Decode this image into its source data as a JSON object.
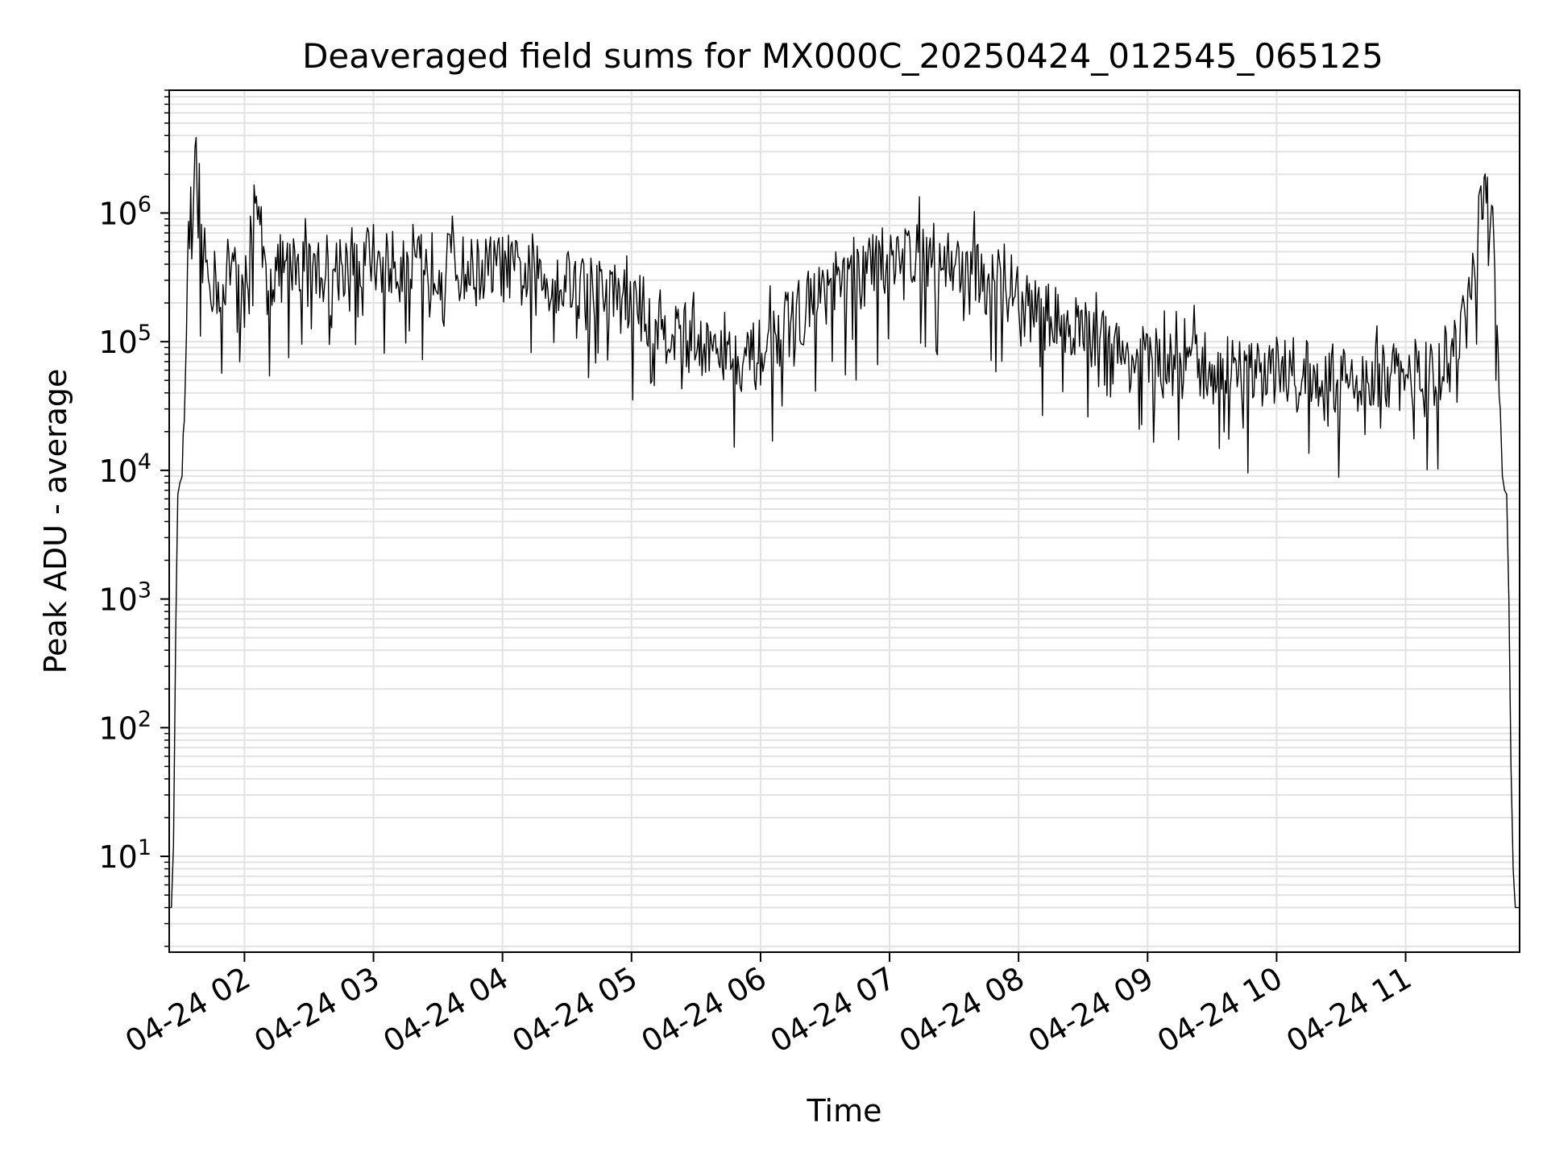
{
  "chart_data": {
    "type": "line",
    "title": "Deaveraged field sums for MX000C_20250424_012545_065125",
    "xlabel": "Time",
    "ylabel": "Peak ADU - average",
    "yscale": "log",
    "grid": true,
    "x_ticks": [
      "04-24 02",
      "04-24 03",
      "04-24 04",
      "04-24 05",
      "04-24 06",
      "04-24 07",
      "04-24 08",
      "04-24 09",
      "04-24 10",
      "04-24 11"
    ],
    "y_ticks": [
      {
        "base": "10",
        "exp": "1"
      },
      {
        "base": "10",
        "exp": "2"
      },
      {
        "base": "10",
        "exp": "3"
      },
      {
        "base": "10",
        "exp": "4"
      },
      {
        "base": "10",
        "exp": "5"
      },
      {
        "base": "10",
        "exp": "6"
      }
    ],
    "ylim": [
      1.8,
      9000000
    ],
    "xlim": [
      "2025-04-24 01:25",
      "2025-04-24 11:53"
    ],
    "series_color": "#000000",
    "series": [
      {
        "x": [
          "2025-04-24 01:25",
          "2025-04-24 01:26",
          "2025-04-24 01:27",
          "2025-04-24 01:28",
          "2025-04-24 01:29",
          "2025-04-24 01:30",
          "2025-04-24 01:31",
          "2025-04-24 01:32",
          "2025-04-24 01:33",
          "2025-04-24 01:34",
          "2025-04-24 01:35",
          "2025-04-24 01:36",
          "2025-04-24 01:37",
          "2025-04-24 01:38",
          "2025-04-24 01:39",
          "2025-04-24 01:40",
          "2025-04-24 01:42",
          "2025-04-24 01:45",
          "2025-04-24 01:50",
          "2025-04-24 01:55",
          "2025-04-24 02:00",
          "2025-04-24 02:05",
          "2025-04-24 02:10",
          "2025-04-24 02:20",
          "2025-04-24 02:30",
          "2025-04-24 02:45",
          "2025-04-24 03:00",
          "2025-04-24 03:15",
          "2025-04-24 03:30",
          "2025-04-24 03:45",
          "2025-04-24 04:00",
          "2025-04-24 04:15",
          "2025-04-24 04:30",
          "2025-04-24 04:45",
          "2025-04-24 05:00",
          "2025-04-24 05:15",
          "2025-04-24 05:30",
          "2025-04-24 05:45",
          "2025-04-24 05:55",
          "2025-04-24 06:05",
          "2025-04-24 06:15",
          "2025-04-24 06:30",
          "2025-04-24 06:45",
          "2025-04-24 07:00",
          "2025-04-24 07:15",
          "2025-04-24 07:30",
          "2025-04-24 07:45",
          "2025-04-24 08:00",
          "2025-04-24 08:15",
          "2025-04-24 08:30",
          "2025-04-24 08:45",
          "2025-04-24 09:00",
          "2025-04-24 09:15",
          "2025-04-24 09:30",
          "2025-04-24 09:45",
          "2025-04-24 10:00",
          "2025-04-24 10:15",
          "2025-04-24 10:30",
          "2025-04-24 10:45",
          "2025-04-24 11:00",
          "2025-04-24 11:15",
          "2025-04-24 11:25",
          "2025-04-24 11:30",
          "2025-04-24 11:33",
          "2025-04-24 11:35",
          "2025-04-24 11:37",
          "2025-04-24 11:38",
          "2025-04-24 11:40",
          "2025-04-24 11:42",
          "2025-04-24 11:44",
          "2025-04-24 11:45",
          "2025-04-24 11:46",
          "2025-04-24 11:47",
          "2025-04-24 11:48",
          "2025-04-24 11:49",
          "2025-04-24 11:50",
          "2025-04-24 11:51",
          "2025-04-24 11:52",
          "2025-04-24 11:53"
        ],
        "y": [
          4,
          4,
          12,
          500,
          6500,
          8000,
          9000,
          40000,
          200000,
          600000,
          1000000,
          1200000,
          4500000,
          1100000,
          800000,
          500000,
          400000,
          300000,
          250000,
          500000,
          200000,
          1700000,
          300000,
          400000,
          350000,
          400000,
          450000,
          350000,
          400000,
          350000,
          380000,
          300000,
          300000,
          250000,
          200000,
          130000,
          100000,
          90000,
          70000,
          100000,
          150000,
          250000,
          300000,
          500000,
          500000,
          400000,
          300000,
          200000,
          150000,
          120000,
          80000,
          70000,
          60000,
          65000,
          55000,
          60000,
          55000,
          50000,
          55000,
          50000,
          60000,
          100000,
          200000,
          600000,
          1000000,
          1400000,
          1200000,
          1000000,
          300000,
          30000,
          9000,
          7000,
          6500,
          1000,
          50,
          8,
          4,
          4,
          4
        ]
      }
    ]
  }
}
